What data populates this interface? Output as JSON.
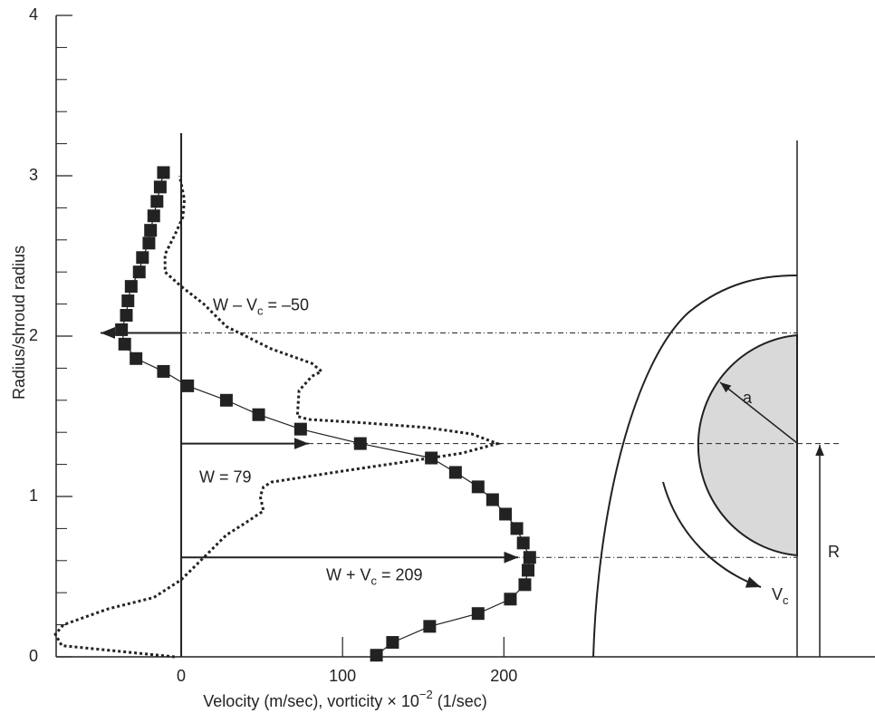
{
  "chart_data": {
    "type": "scatter",
    "xlabel": [
      "Velocity (m/sec), vorticity × 10",
      "−2",
      " (1/sec)"
    ],
    "ylabel": "Radius/shroud radius",
    "xlim": [
      -77.5,
      430
    ],
    "ylim": [
      0,
      4
    ],
    "xticks": [
      0,
      100,
      200
    ],
    "yticks": [
      0,
      1,
      2,
      3,
      4
    ],
    "yminorticks": [
      0.2,
      0.4,
      0.6,
      0.8,
      1.2,
      1.4,
      1.6,
      1.8,
      2.2,
      2.4,
      2.6,
      2.8,
      3.2,
      3.4,
      3.6,
      3.8
    ],
    "series": [
      {
        "color": "#222222",
        "marker": "square",
        "line_style": "solid",
        "x": [
          121,
          131,
          154,
          184,
          204,
          213,
          215,
          216,
          212,
          208,
          201,
          193,
          184,
          170,
          155,
          111,
          74,
          48,
          28,
          4,
          -11,
          -28,
          -35,
          -37,
          -34,
          -33,
          -31,
          -26,
          -24,
          -20,
          -19,
          -17,
          -15,
          -13,
          -11
        ],
        "y": [
          0.01,
          0.09,
          0.19,
          0.27,
          0.36,
          0.45,
          0.54,
          0.62,
          0.71,
          0.8,
          0.89,
          0.98,
          1.06,
          1.15,
          1.24,
          1.33,
          1.42,
          1.51,
          1.6,
          1.69,
          1.78,
          1.86,
          1.95,
          2.04,
          2.13,
          2.22,
          2.31,
          2.4,
          2.49,
          2.58,
          2.66,
          2.75,
          2.84,
          2.93,
          3.02
        ]
      },
      {
        "color": "#222222",
        "line_style": "dotted",
        "x": [
          -4,
          -74,
          -78,
          -73,
          -45,
          -17,
          0,
          14,
          28,
          39,
          51,
          49,
          51,
          56,
          101,
          135,
          174,
          196,
          180,
          152,
          112,
          79,
          72,
          73,
          81,
          87,
          81,
          56,
          28,
          14,
          0,
          -10,
          -10,
          -4,
          1,
          2,
          -1
        ],
        "y": [
          0,
          0.07,
          0.14,
          0.2,
          0.3,
          0.37,
          0.48,
          0.62,
          0.76,
          0.83,
          0.91,
          1.0,
          1.06,
          1.09,
          1.16,
          1.21,
          1.27,
          1.33,
          1.39,
          1.43,
          1.46,
          1.48,
          1.5,
          1.66,
          1.75,
          1.78,
          1.83,
          1.92,
          2.06,
          2.2,
          2.31,
          2.4,
          2.51,
          2.63,
          2.74,
          2.85,
          3.0
        ]
      }
    ],
    "annotations": [
      {
        "text": [
          "W – V",
          "c",
          " = –50"
        ],
        "value": -50,
        "y": 2.02,
        "line": "dashdot"
      },
      {
        "text": [
          "W = 79"
        ],
        "value": 79,
        "y": 1.33,
        "line": "dashed"
      },
      {
        "text": [
          "W + V",
          "c",
          " = 209"
        ],
        "value": 209,
        "y": 0.62,
        "line": "dashdot"
      }
    ],
    "diagram_labels": {
      "radius": "a",
      "ring_radius": "R",
      "circulation": [
        "V",
        "c"
      ]
    }
  }
}
